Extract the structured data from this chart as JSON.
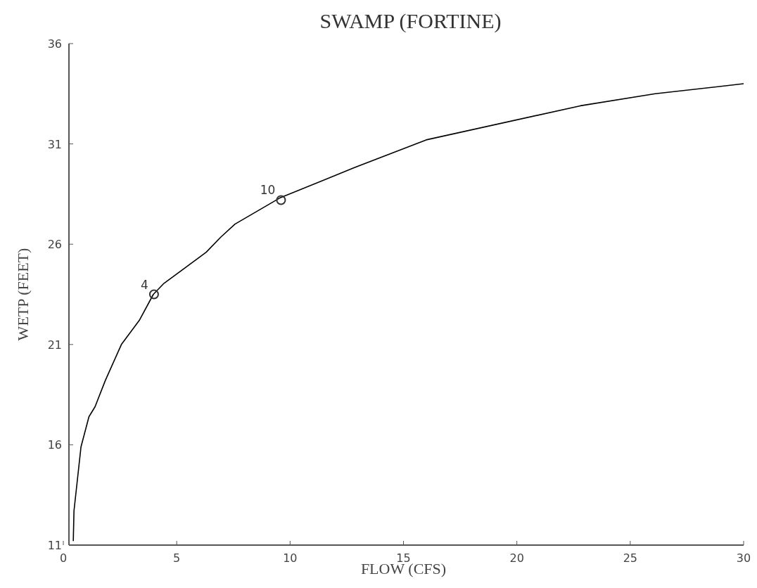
{
  "chart_data": {
    "type": "line",
    "title": "SWAMP (FORTINE)",
    "xlabel": "FLOW (CFS)",
    "ylabel": "WETP (FEET)",
    "xlim": [
      0,
      30
    ],
    "xticks": [
      0,
      5,
      10,
      15,
      20,
      25,
      30
    ],
    "ylim": [
      11,
      36
    ],
    "yticks": [
      11,
      16,
      21,
      26,
      31,
      36
    ],
    "grid": false,
    "series": [
      {
        "color": "#000000",
        "marker": "none",
        "x": [
          0.44,
          0.47,
          0.78,
          1.13,
          1.4,
          1.85,
          2.56,
          3.35,
          3.97,
          4.44,
          6.3,
          6.94,
          7.57,
          9.54,
          12.8,
          16.0,
          22.8,
          26.1,
          30
        ],
        "values": [
          11.2,
          12.7,
          15.9,
          17.4,
          17.9,
          19.2,
          21.0,
          22.2,
          23.5,
          24.05,
          25.6,
          26.35,
          27.0,
          28.3,
          29.8,
          31.2,
          32.9,
          33.5,
          34.0
        ]
      },
      {
        "type": "scatter",
        "color": "#333333",
        "marker": "circle",
        "x": [
          4.0,
          9.6
        ],
        "values": [
          23.5,
          28.2
        ]
      }
    ],
    "annotations": [
      {
        "text": "4",
        "x": 4.0,
        "y": 23.5
      },
      {
        "text": "10",
        "x": 9.6,
        "y": 28.2
      }
    ]
  }
}
